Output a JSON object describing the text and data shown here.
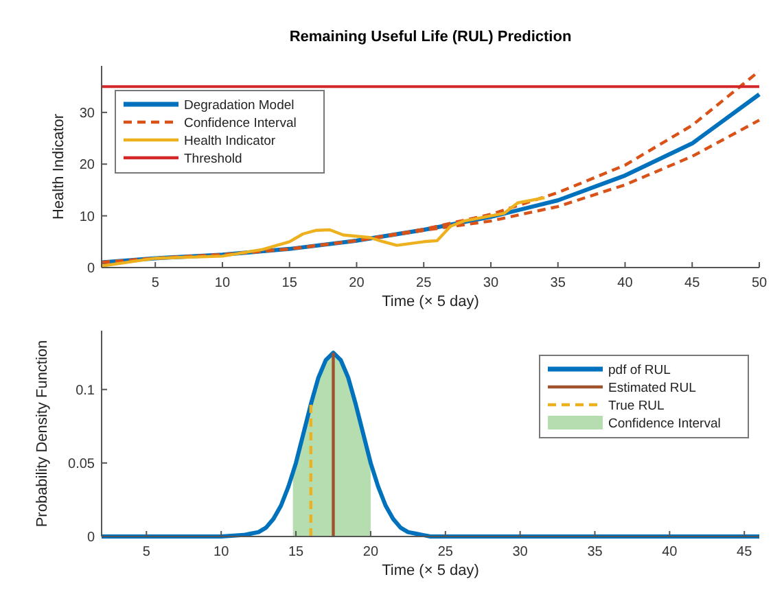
{
  "chart_data": [
    {
      "type": "line",
      "title": "Remaining Useful Life (RUL) Prediction",
      "xlabel": "Time (× 5 day)",
      "ylabel": "Health Indicator",
      "xlim": [
        1,
        50
      ],
      "ylim": [
        0,
        39
      ],
      "xticks": [
        5,
        10,
        15,
        20,
        25,
        30,
        35,
        40,
        45,
        50
      ],
      "yticks": [
        0,
        10,
        20,
        30
      ],
      "grid": false,
      "legend": "top left",
      "series": [
        {
          "name": "Degradation Model",
          "color": "#0072bd",
          "x": [
            1,
            5,
            10,
            15,
            20,
            25,
            30,
            35,
            40,
            45,
            50
          ],
          "values": [
            1,
            1.8,
            2.5,
            3.6,
            5.2,
            7.3,
            9.8,
            13,
            17.8,
            24,
            33.5
          ]
        },
        {
          "name": "Confidence Interval",
          "color": "#d95319",
          "line_style": "dashed",
          "x": [
            1,
            5,
            10,
            15,
            20,
            25,
            30,
            35,
            40,
            45,
            50
          ],
          "values": [
            1,
            1.8,
            2.5,
            3.6,
            5.2,
            7.4,
            10.3,
            14.5,
            19.8,
            27.5,
            38
          ]
        },
        {
          "color": "#d95319",
          "line_style": "dashed",
          "x": [
            1,
            5,
            10,
            15,
            20,
            25,
            30,
            35,
            40,
            45,
            50
          ],
          "values": [
            1,
            1.8,
            2.5,
            3.6,
            5.2,
            7.2,
            9,
            11.8,
            16,
            21.5,
            28.5
          ]
        },
        {
          "name": "Health Indicator",
          "color": "#edb120",
          "x": [
            1,
            5,
            10,
            13,
            15,
            16,
            17,
            18,
            19,
            21,
            22,
            23,
            25,
            26,
            27,
            28,
            30,
            31,
            32,
            34
          ],
          "values": [
            0.3,
            1.8,
            2.2,
            3.5,
            5,
            6.5,
            7.2,
            7.3,
            6.3,
            5.8,
            5,
            4.3,
            5,
            5.2,
            8,
            9,
            10,
            10.5,
            12.5,
            13.5
          ]
        }
      ],
      "ref_lines": [
        {
          "axis": "y",
          "value": 35,
          "label": "Threshold",
          "color": "#d62728"
        }
      ]
    },
    {
      "type": "line",
      "xlabel": "Time (× 5 day)",
      "ylabel": "Probability Density Function",
      "xlim": [
        2,
        46
      ],
      "ylim": [
        0,
        0.14
      ],
      "xticks": [
        5,
        10,
        15,
        20,
        25,
        30,
        35,
        40,
        45
      ],
      "yticks": [
        0,
        0.05,
        0.1
      ],
      "grid": false,
      "legend": "top right",
      "series": [
        {
          "name": "pdf of RUL",
          "color": "#0072bd",
          "x": [
            2,
            10,
            11.5,
            12,
            12.5,
            13,
            13.5,
            14,
            14.5,
            15,
            15.5,
            16,
            16.5,
            17,
            17.5,
            18,
            18.5,
            19,
            19.5,
            20,
            20.5,
            21,
            21.5,
            22,
            22.5,
            23,
            23.5,
            24,
            46
          ],
          "values": [
            0,
            0,
            0.001,
            0.002,
            0.003,
            0.006,
            0.012,
            0.021,
            0.034,
            0.05,
            0.07,
            0.09,
            0.108,
            0.12,
            0.125,
            0.12,
            0.108,
            0.09,
            0.07,
            0.05,
            0.034,
            0.021,
            0.012,
            0.006,
            0.003,
            0.002,
            0.001,
            0,
            0
          ]
        },
        {
          "name": "Estimated RUL",
          "color": "#a0522d",
          "x": [
            17.5,
            17.5
          ],
          "values": [
            0,
            0.125
          ]
        },
        {
          "name": "True RUL",
          "color": "#edb120",
          "line_style": "dashed",
          "x": [
            16,
            16
          ],
          "values": [
            0,
            0.09
          ]
        },
        {
          "name": "Confidence Interval",
          "type": "area",
          "color": "#b6ddb0",
          "x": [
            14.8,
            15,
            15.5,
            16,
            16.5,
            17,
            17.5,
            18,
            18.5,
            19,
            19.5,
            20
          ],
          "values": [
            0.043,
            0.05,
            0.07,
            0.09,
            0.108,
            0.12,
            0.125,
            0.12,
            0.108,
            0.09,
            0.07,
            0.05
          ]
        }
      ]
    }
  ]
}
